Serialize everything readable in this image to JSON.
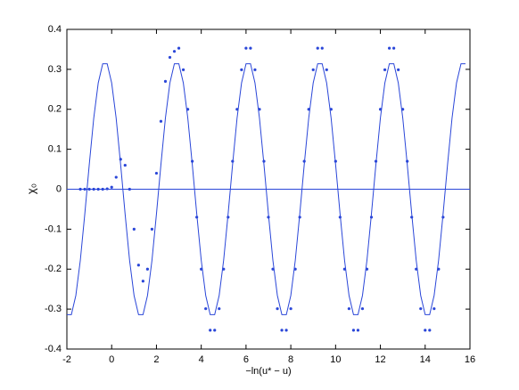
{
  "chart_data": {
    "type": "line",
    "xlabel": "−ln(u* − u)",
    "ylabel": "χ₀",
    "xlim": [
      -2,
      16
    ],
    "xticks": [
      -2,
      0,
      2,
      4,
      6,
      8,
      10,
      12,
      14,
      16
    ],
    "ylim": [
      -0.4,
      0.4
    ],
    "yticks": [
      -0.4,
      -0.3,
      -0.2,
      -0.1,
      0,
      0.1,
      0.2,
      0.3,
      0.4
    ],
    "series": [
      {
        "style": "line",
        "color": "#2a46d8",
        "x": [
          -2,
          -1.8,
          -1.6,
          -1.4,
          -1.2,
          -1,
          -0.8,
          -0.6,
          -0.4,
          -0.2,
          0,
          0.2,
          0.4,
          0.6,
          0.8,
          1,
          1.2,
          1.4,
          1.6,
          1.8,
          2,
          2.2,
          2.4,
          2.6,
          2.8,
          3,
          3.2,
          3.4,
          3.6,
          3.8,
          4,
          4.2,
          4.4,
          4.6,
          4.8,
          5,
          5.2,
          5.4,
          5.6,
          5.8,
          6,
          6.2,
          6.4,
          6.6,
          6.8,
          7,
          7.2,
          7.4,
          7.6,
          7.8,
          8,
          8.2,
          8.4,
          8.6,
          8.8,
          9,
          9.2,
          9.4,
          9.6,
          9.8,
          10,
          10.2,
          10.4,
          10.6,
          10.8,
          11,
          11.2,
          11.4,
          11.6,
          11.8,
          12,
          12.2,
          12.4,
          12.6,
          12.8,
          13,
          13.2,
          13.4,
          13.6,
          13.8,
          14,
          14.2,
          14.4,
          14.6,
          14.8,
          15,
          15.2,
          15.4,
          15.6,
          15.8
        ],
        "values": [
          -0.314,
          -0.314,
          -0.266,
          -0.178,
          -0.062,
          0.062,
          0.178,
          0.266,
          0.314,
          0.314,
          0.266,
          0.178,
          0.062,
          -0.062,
          -0.178,
          -0.266,
          -0.314,
          -0.314,
          -0.266,
          -0.178,
          -0.062,
          0.062,
          0.178,
          0.266,
          0.314,
          0.314,
          0.266,
          0.178,
          0.062,
          -0.062,
          -0.178,
          -0.266,
          -0.314,
          -0.314,
          -0.266,
          -0.178,
          -0.062,
          0.062,
          0.178,
          0.266,
          0.314,
          0.314,
          0.266,
          0.178,
          0.062,
          -0.062,
          -0.178,
          -0.266,
          -0.314,
          -0.314,
          -0.266,
          -0.178,
          -0.062,
          0.062,
          0.178,
          0.266,
          0.314,
          0.314,
          0.266,
          0.178,
          0.062,
          -0.062,
          -0.178,
          -0.266,
          -0.314,
          -0.314,
          -0.266,
          -0.178,
          -0.062,
          0.062,
          0.178,
          0.266,
          0.314,
          0.314,
          0.266,
          0.178,
          0.062,
          -0.062,
          -0.178,
          -0.266,
          -0.314,
          -0.314,
          -0.266,
          -0.178,
          -0.062,
          0.062,
          0.178,
          0.266,
          0.314,
          0.314
        ]
      },
      {
        "style": "line",
        "color": "#2a46d8",
        "x": [
          -2,
          16
        ],
        "values": [
          0,
          0
        ]
      },
      {
        "style": "dots",
        "color": "#2a46d8",
        "x": [
          -1.4,
          -1.2,
          -1,
          -0.8,
          -0.6,
          -0.4,
          -0.2,
          0,
          0.2,
          0.4,
          0.6,
          0.8,
          1,
          1.2,
          1.4,
          1.6,
          1.8,
          2,
          2.2,
          2.4,
          2.6,
          2.8,
          3,
          3.2,
          3.4,
          3.6,
          3.8,
          4,
          4.2,
          4.4,
          4.6,
          4.8,
          5,
          5.2,
          5.4,
          5.6,
          5.8,
          6,
          6.2,
          6.4,
          6.6,
          6.8,
          7,
          7.2,
          7.4,
          7.6,
          7.8,
          8,
          8.2,
          8.4,
          8.6,
          8.8,
          9,
          9.2,
          9.4,
          9.6,
          9.8,
          10,
          10.2,
          10.4,
          10.6,
          10.8,
          11,
          11.2,
          11.4,
          11.6,
          11.8,
          12,
          12.2,
          12.4,
          12.6,
          12.8,
          13,
          13.2,
          13.4,
          13.6,
          13.8,
          14,
          14.2,
          14.4,
          14.6,
          14.8
        ],
        "values": [
          0,
          0,
          0,
          0,
          0,
          0,
          0.001,
          0.005,
          0.03,
          0.075,
          0.06,
          0,
          -0.1,
          -0.19,
          -0.23,
          -0.2,
          -0.1,
          0.04,
          0.17,
          0.27,
          0.33,
          0.345,
          0.353,
          0.299,
          0.2,
          0.07,
          -0.07,
          -0.2,
          -0.299,
          -0.353,
          -0.353,
          -0.299,
          -0.2,
          -0.07,
          0.07,
          0.2,
          0.299,
          0.353,
          0.353,
          0.299,
          0.2,
          0.07,
          -0.07,
          -0.2,
          -0.299,
          -0.353,
          -0.353,
          -0.299,
          -0.2,
          -0.07,
          0.07,
          0.2,
          0.299,
          0.353,
          0.353,
          0.299,
          0.2,
          0.07,
          -0.07,
          -0.2,
          -0.299,
          -0.353,
          -0.353,
          -0.299,
          -0.2,
          -0.07,
          0.07,
          0.2,
          0.299,
          0.353,
          0.353,
          0.299,
          0.2,
          0.07,
          -0.07,
          -0.2,
          -0.299,
          -0.353,
          -0.353,
          -0.299,
          -0.2,
          -0.07
        ]
      }
    ]
  }
}
